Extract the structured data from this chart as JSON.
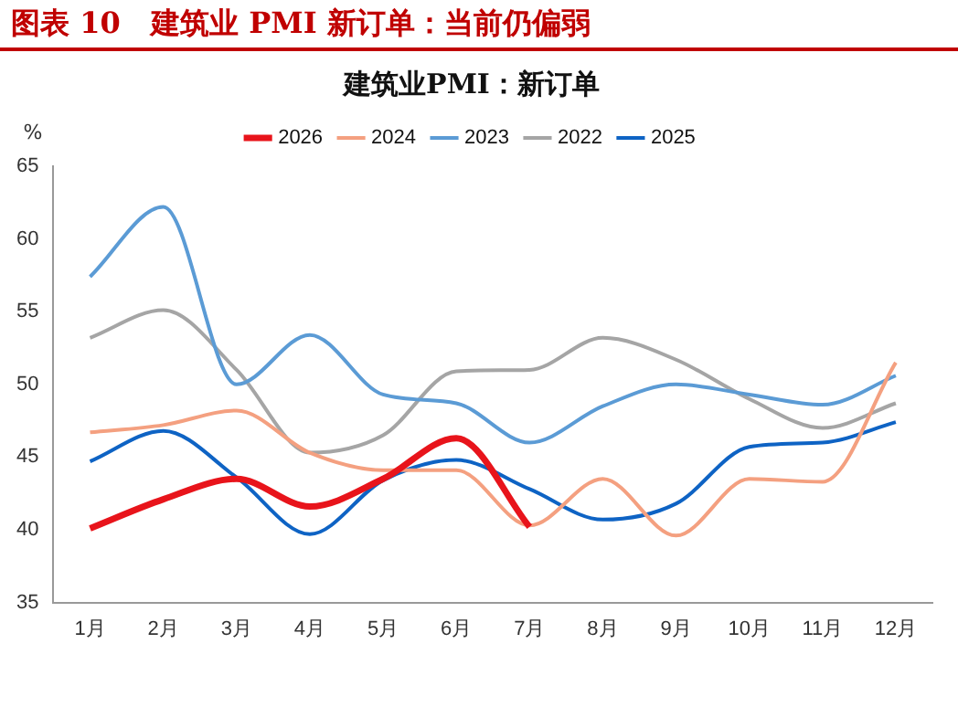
{
  "chart_data": {
    "type": "line",
    "title": "图表 10   建筑业 PMI 新订单：当前仍偏弱",
    "subtitle": "建筑业PMI：新订单",
    "ylabel": "%",
    "categories": [
      "1月",
      "2月",
      "3月",
      "4月",
      "5月",
      "6月",
      "7月",
      "8月",
      "9月",
      "10月",
      "11月",
      "12月"
    ],
    "series": [
      {
        "name": "2026",
        "color": "#e8141b",
        "values": [
          40.1,
          42.1,
          43.5,
          41.6,
          43.5,
          46.3,
          40.2,
          null,
          null,
          null,
          null,
          null
        ]
      },
      {
        "name": "2024",
        "color": "#f4a080",
        "values": [
          46.7,
          47.2,
          48.2,
          45.3,
          44.1,
          44.1,
          40.3,
          43.5,
          39.6,
          43.5,
          43.3,
          51.5
        ]
      },
      {
        "name": "2023",
        "color": "#5b9bd5",
        "values": [
          57.4,
          62.2,
          50.0,
          53.4,
          49.3,
          48.7,
          46.0,
          48.5,
          50.0,
          49.3,
          48.6,
          50.6
        ]
      },
      {
        "name": "2022",
        "color": "#a5a5a5",
        "values": [
          53.2,
          55.1,
          51.0,
          45.3,
          46.5,
          50.9,
          51.0,
          53.2,
          51.7,
          49.0,
          47.0,
          48.7
        ]
      },
      {
        "name": "2025",
        "color": "#0e63c4",
        "values": [
          44.7,
          46.8,
          43.6,
          39.7,
          43.4,
          44.8,
          42.8,
          40.7,
          41.8,
          45.7,
          46.0,
          47.4
        ]
      }
    ],
    "ylim": [
      35,
      65
    ],
    "yticks": [
      35,
      40,
      45,
      50,
      55,
      60,
      65
    ],
    "grid": false,
    "legend": "top",
    "marker": "none",
    "line_style": "solid"
  }
}
